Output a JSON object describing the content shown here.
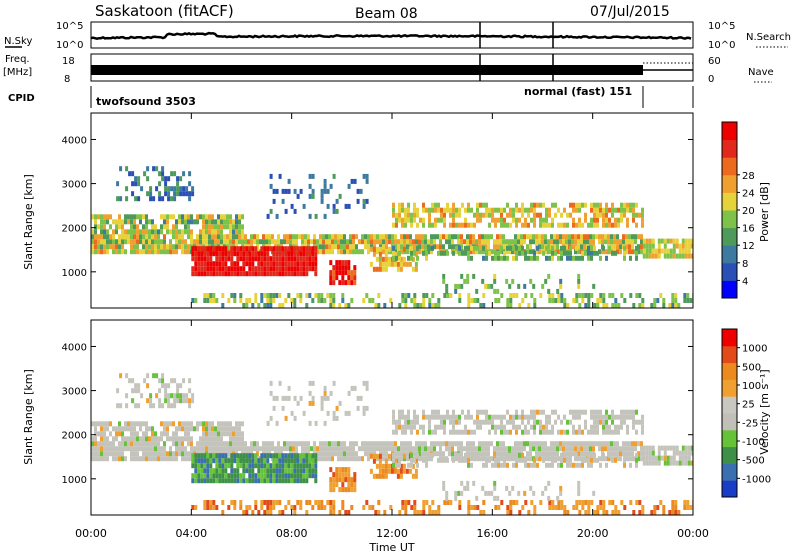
{
  "header": {
    "station": "Saskatoon (fitACF)",
    "beam": "Beam 08",
    "date": "07/Jul/2015"
  },
  "status": {
    "nsky_label": "N.Sky",
    "nsky_ticks": [
      "10^5",
      "10^0"
    ],
    "nsearch_label": "N.Search",
    "freq_label_1": "Freq.",
    "freq_label_2": "[MHz]",
    "freq_ticks": [
      "18",
      "8"
    ],
    "nave_label": "Nave",
    "nave_ticks": [
      "60",
      "0"
    ],
    "cpid_label": "CPID",
    "cpid_segments": [
      {
        "name": "twofsound 3503",
        "start_hour": 0,
        "end_hour": 22.0
      },
      {
        "name": "normal (fast) 151",
        "start_hour": 22.0,
        "end_hour": 24
      }
    ]
  },
  "chart_data": [
    {
      "type": "heatmap",
      "panel": "power",
      "ylabel": "Slant Range [km]",
      "xlabel": "Time UT",
      "x_ticks": [
        "00:00",
        "04:00",
        "08:00",
        "12:00",
        "16:00",
        "20:00",
        "00:00"
      ],
      "x_range_hours": [
        0,
        24
      ],
      "y_ticks": [
        1000,
        2000,
        3000,
        4000
      ],
      "ylim": [
        180,
        4600
      ],
      "colorbar": {
        "label": "Power [dB]",
        "ticks": [
          "4",
          "8",
          "12",
          "16",
          "20",
          "24",
          "28"
        ],
        "range": [
          0,
          30
        ],
        "colors": [
          "#0000ff",
          "#2a4fb5",
          "#3e7aa0",
          "#4e9a5a",
          "#7ec24a",
          "#e6d23a",
          "#f0a030",
          "#ec6a1e",
          "#e2281c",
          "#ee0000"
        ]
      }
    },
    {
      "type": "heatmap",
      "panel": "velocity",
      "ylabel": "Slant Range [km]",
      "xlabel": "Time UT",
      "x_ticks": [
        "00:00",
        "04:00",
        "08:00",
        "12:00",
        "16:00",
        "20:00",
        "00:00"
      ],
      "x_range_hours": [
        0,
        24
      ],
      "y_ticks": [
        1000,
        2000,
        3000,
        4000
      ],
      "ylim": [
        180,
        4600
      ],
      "colorbar": {
        "label": "Velocity [m s⁻¹]",
        "ticks": [
          "1000",
          "500",
          "100",
          "25",
          "-25",
          "-100",
          "-500",
          "-1000"
        ],
        "colors": [
          "#1a3dc8",
          "#3a6fb0",
          "#3e8f48",
          "#66c238",
          "#c0c0b8",
          "#c8c8c0",
          "#f0a030",
          "#ec8a20",
          "#e24a1a",
          "#ee0000"
        ]
      }
    }
  ]
}
